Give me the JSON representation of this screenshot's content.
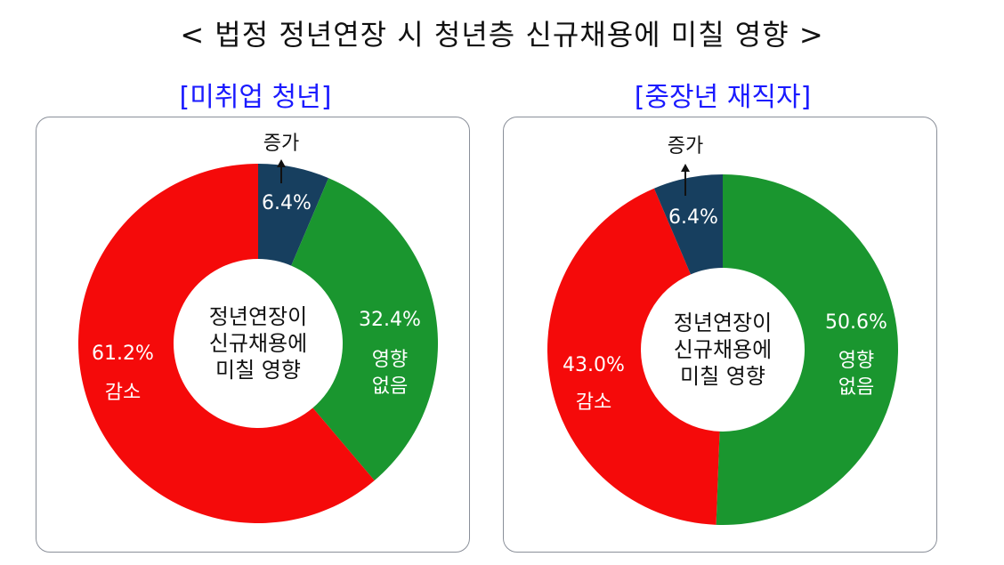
{
  "title": "< 법정 정년연장 시 청년층 신규채용에 미칠 영향 >",
  "colors": {
    "increase": "#173f5f",
    "no_effect": "#1a962f",
    "decrease": "#f50a0a",
    "subtitle": "#1a1aff"
  },
  "chart_data": [
    {
      "type": "pie",
      "subtitle": "[미취업 청년]",
      "center_label": [
        "정년연장이",
        "신규채용에",
        "미칠 영향"
      ],
      "slices": [
        {
          "label": "증가",
          "value": 6.4,
          "value_text": "6.4%",
          "color": "#173f5f"
        },
        {
          "label": "영향 없음",
          "label_lines": [
            "영향",
            "없음"
          ],
          "value": 32.4,
          "value_text": "32.4%",
          "color": "#1a962f"
        },
        {
          "label": "감소",
          "label_lines": [
            "감소"
          ],
          "value": 61.2,
          "value_text": "61.2%",
          "color": "#f50a0a"
        }
      ]
    },
    {
      "type": "pie",
      "subtitle": "[중장년 재직자]",
      "center_label": [
        "정년연장이",
        "신규채용에",
        "미칠 영향"
      ],
      "slices": [
        {
          "label": "영향 없음",
          "label_lines": [
            "영향",
            "없음"
          ],
          "value": 50.6,
          "value_text": "50.6%",
          "color": "#1a962f"
        },
        {
          "label": "감소",
          "label_lines": [
            "감소"
          ],
          "value": 43.0,
          "value_text": "43.0%",
          "color": "#f50a0a"
        },
        {
          "label": "증가",
          "value": 6.4,
          "value_text": "6.4%",
          "color": "#173f5f"
        }
      ]
    }
  ]
}
